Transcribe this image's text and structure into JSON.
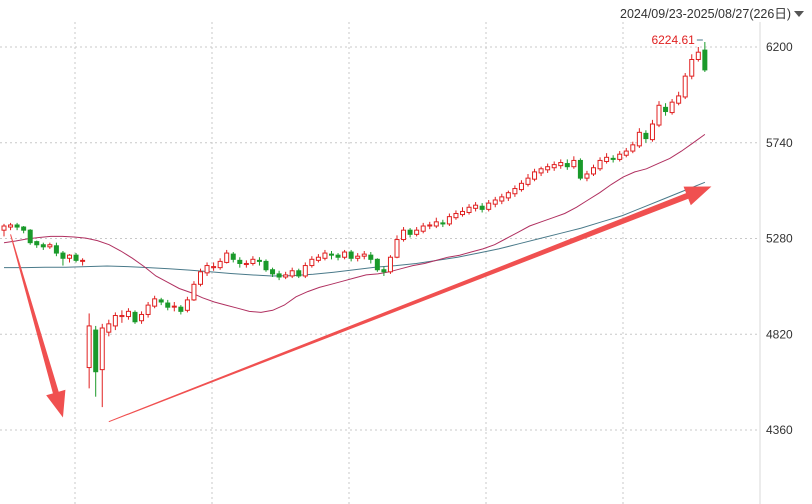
{
  "header": {
    "date_range": "2024/09/23-2025/08/27(226日)"
  },
  "chart_data": {
    "type": "candlestick",
    "ylim": [
      4200,
      6320
    ],
    "y_ticks": [
      4360,
      4820,
      5280,
      5740,
      6200
    ],
    "last_value_label": "6224.61",
    "grid": true,
    "colors": {
      "up": "#e02020",
      "down": "#1a9a2a",
      "ma_short": "#b03060",
      "ma_long": "#4a7a8a",
      "arrow": "#f05050",
      "grid": "#c8c8c8"
    },
    "candles": [
      [
        5320,
        5340,
        5350,
        5290
      ],
      [
        5335,
        5345,
        5355,
        5320
      ],
      [
        5345,
        5335,
        5355,
        5320
      ],
      [
        5335,
        5320,
        5340,
        5305
      ],
      [
        5320,
        5260,
        5325,
        5250
      ],
      [
        5265,
        5250,
        5270,
        5235
      ],
      [
        5250,
        5240,
        5260,
        5225
      ],
      [
        5240,
        5250,
        5260,
        5230
      ],
      [
        5245,
        5210,
        5260,
        5195
      ],
      [
        5210,
        5185,
        5220,
        5150
      ],
      [
        5185,
        5200,
        5205,
        5165
      ],
      [
        5200,
        5175,
        5210,
        5165
      ],
      [
        5175,
        5175,
        5185,
        5150
      ],
      [
        4660,
        4860,
        4920,
        4560
      ],
      [
        4840,
        4640,
        4860,
        4520
      ],
      [
        4650,
        4850,
        4870,
        4470
      ],
      [
        4830,
        4870,
        4890,
        4810
      ],
      [
        4860,
        4910,
        4925,
        4840
      ],
      [
        4905,
        4910,
        4935,
        4875
      ],
      [
        4905,
        4930,
        4945,
        4890
      ],
      [
        4925,
        4880,
        4935,
        4870
      ],
      [
        4885,
        4915,
        4930,
        4870
      ],
      [
        4915,
        4960,
        4975,
        4900
      ],
      [
        4955,
        4990,
        5005,
        4945
      ],
      [
        4985,
        4975,
        4995,
        4960
      ],
      [
        4970,
        4950,
        4985,
        4935
      ],
      [
        4955,
        4955,
        4975,
        4930
      ],
      [
        4950,
        4930,
        4960,
        4915
      ],
      [
        4935,
        4985,
        5000,
        4925
      ],
      [
        4985,
        5060,
        5075,
        4980
      ],
      [
        5060,
        5120,
        5135,
        5050
      ],
      [
        5115,
        5150,
        5165,
        5100
      ],
      [
        5140,
        5145,
        5165,
        5125
      ],
      [
        5140,
        5170,
        5185,
        5130
      ],
      [
        5165,
        5210,
        5225,
        5160
      ],
      [
        5205,
        5180,
        5215,
        5165
      ],
      [
        5175,
        5160,
        5190,
        5140
      ],
      [
        5155,
        5160,
        5175,
        5140
      ],
      [
        5160,
        5180,
        5195,
        5150
      ],
      [
        5175,
        5170,
        5190,
        5150
      ],
      [
        5170,
        5130,
        5180,
        5120
      ],
      [
        5130,
        5110,
        5140,
        5095
      ],
      [
        5110,
        5095,
        5125,
        5080
      ],
      [
        5095,
        5105,
        5120,
        5085
      ],
      [
        5100,
        5125,
        5140,
        5090
      ],
      [
        5125,
        5100,
        5135,
        5090
      ],
      [
        5100,
        5150,
        5165,
        5090
      ],
      [
        5150,
        5180,
        5195,
        5140
      ],
      [
        5175,
        5190,
        5205,
        5165
      ],
      [
        5185,
        5210,
        5225,
        5175
      ],
      [
        5205,
        5200,
        5220,
        5180
      ],
      [
        5200,
        5190,
        5210,
        5175
      ],
      [
        5190,
        5215,
        5225,
        5180
      ],
      [
        5215,
        5185,
        5225,
        5170
      ],
      [
        5185,
        5195,
        5210,
        5170
      ],
      [
        5195,
        5205,
        5220,
        5180
      ],
      [
        5200,
        5180,
        5215,
        5160
      ],
      [
        5180,
        5130,
        5185,
        5120
      ],
      [
        5130,
        5120,
        5145,
        5100
      ],
      [
        5120,
        5190,
        5200,
        5110
      ],
      [
        5190,
        5275,
        5295,
        5185
      ],
      [
        5275,
        5320,
        5335,
        5265
      ],
      [
        5320,
        5300,
        5330,
        5285
      ],
      [
        5300,
        5320,
        5335,
        5290
      ],
      [
        5315,
        5340,
        5355,
        5305
      ],
      [
        5340,
        5345,
        5360,
        5325
      ],
      [
        5340,
        5360,
        5380,
        5330
      ],
      [
        5355,
        5350,
        5370,
        5335
      ],
      [
        5350,
        5385,
        5400,
        5340
      ],
      [
        5380,
        5400,
        5415,
        5370
      ],
      [
        5395,
        5410,
        5430,
        5385
      ],
      [
        5405,
        5430,
        5445,
        5395
      ],
      [
        5425,
        5440,
        5455,
        5410
      ],
      [
        5435,
        5420,
        5450,
        5405
      ],
      [
        5420,
        5450,
        5465,
        5410
      ],
      [
        5445,
        5465,
        5480,
        5430
      ],
      [
        5460,
        5480,
        5495,
        5445
      ],
      [
        5475,
        5500,
        5510,
        5460
      ],
      [
        5495,
        5520,
        5535,
        5480
      ],
      [
        5515,
        5545,
        5560,
        5505
      ],
      [
        5540,
        5570,
        5590,
        5530
      ],
      [
        5565,
        5600,
        5615,
        5555
      ],
      [
        5595,
        5615,
        5625,
        5580
      ],
      [
        5610,
        5625,
        5640,
        5595
      ],
      [
        5620,
        5635,
        5650,
        5605
      ],
      [
        5630,
        5645,
        5660,
        5615
      ],
      [
        5640,
        5625,
        5660,
        5610
      ],
      [
        5625,
        5655,
        5675,
        5615
      ],
      [
        5655,
        5570,
        5665,
        5560
      ],
      [
        5570,
        5590,
        5605,
        5555
      ],
      [
        5590,
        5620,
        5635,
        5580
      ],
      [
        5615,
        5655,
        5670,
        5605
      ],
      [
        5650,
        5670,
        5690,
        5640
      ],
      [
        5665,
        5660,
        5680,
        5645
      ],
      [
        5660,
        5685,
        5700,
        5650
      ],
      [
        5680,
        5700,
        5715,
        5670
      ],
      [
        5700,
        5730,
        5745,
        5690
      ],
      [
        5725,
        5790,
        5810,
        5715
      ],
      [
        5785,
        5760,
        5800,
        5740
      ],
      [
        5755,
        5830,
        5850,
        5745
      ],
      [
        5825,
        5920,
        5940,
        5815
      ],
      [
        5910,
        5890,
        5930,
        5870
      ],
      [
        5885,
        5935,
        5950,
        5875
      ],
      [
        5930,
        5965,
        5985,
        5920
      ],
      [
        5960,
        6060,
        6075,
        5950
      ],
      [
        6060,
        6140,
        6165,
        6045
      ],
      [
        6140,
        6175,
        6200,
        6130
      ],
      [
        6185,
        6090,
        6224,
        6080
      ]
    ],
    "ma_short": [
      5260,
      5268,
      5278,
      5285,
      5290,
      5290,
      5287,
      5282,
      5270,
      5250,
      5220,
      5185,
      5145,
      5100,
      5070,
      5040,
      5020,
      4995,
      4975,
      4960,
      4945,
      4930,
      4925,
      4935,
      4960,
      5000,
      5025,
      5045,
      5060,
      5075,
      5090,
      5105,
      5110,
      5120,
      5135,
      5150,
      5160,
      5175,
      5190,
      5200,
      5215,
      5230,
      5250,
      5280,
      5310,
      5340,
      5360,
      5380,
      5400,
      5430,
      5465,
      5500,
      5540,
      5575,
      5600,
      5615,
      5640,
      5665,
      5700,
      5740,
      5780
    ],
    "ma_long": [
      5140,
      5140,
      5142,
      5142,
      5145,
      5148,
      5145,
      5140,
      5135,
      5128,
      5120,
      5112,
      5105,
      5100,
      5102,
      5108,
      5118,
      5130,
      5142,
      5150,
      5160,
      5175,
      5190,
      5210,
      5230,
      5255,
      5280,
      5305,
      5330,
      5360,
      5390,
      5430,
      5470,
      5510,
      5550
    ],
    "arrows": [
      {
        "direction": "down",
        "from_index": 1,
        "from_value": 5300,
        "to_index": 9,
        "to_value": 4420
      },
      {
        "direction": "up",
        "from_index": 16,
        "from_value": 4400,
        "to_index": 108,
        "to_value": 5530
      }
    ]
  }
}
